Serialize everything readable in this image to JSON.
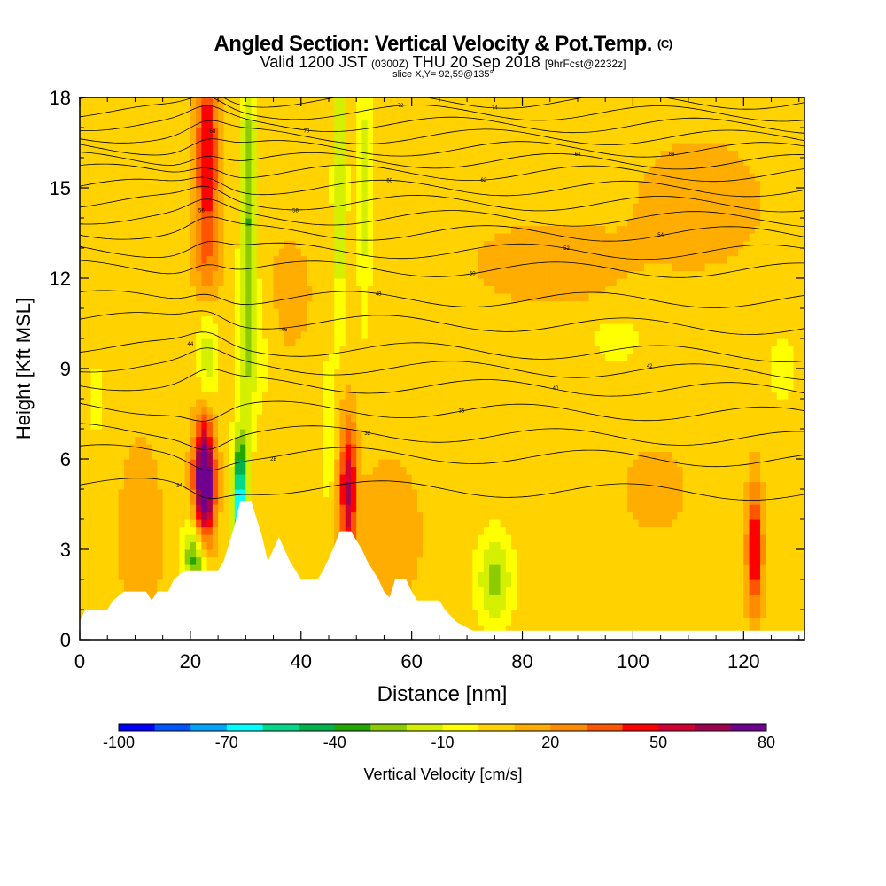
{
  "title": {
    "main": "Angled Section: Vertical Velocity & Pot.Temp.",
    "main_suffix": "(C)",
    "valid_prefix": "Valid 1200 JST",
    "valid_zulu": "(0300Z)",
    "valid_date": "THU 20 Sep 2018",
    "forecast": "[9hrFcst@2232z]",
    "slice": "slice X,Y= 92,59@135°"
  },
  "chart_data": {
    "type": "heatmap",
    "xlabel": "Distance [nm]",
    "ylabel": "Height [Kft MSL]",
    "xlim": [
      0,
      131
    ],
    "ylim": [
      0,
      18
    ],
    "x_ticks": [
      0,
      20,
      40,
      60,
      80,
      100,
      120
    ],
    "y_ticks": [
      0,
      3,
      6,
      9,
      12,
      15,
      18
    ],
    "colorbar": {
      "label": "Vertical Velocity [cm/s]",
      "tick_labels": [
        "-100",
        "-70",
        "-40",
        "-10",
        "20",
        "50",
        "80"
      ],
      "range": [
        -100,
        80
      ],
      "step": 10,
      "colors": [
        "#0000ff",
        "#0055ff",
        "#00a4ff",
        "#00ffff",
        "#00d98c",
        "#00b24c",
        "#23a600",
        "#8ccc00",
        "#d4f000",
        "#ffff00",
        "#ffd200",
        "#ffad00",
        "#ff8c00",
        "#ff5500",
        "#ff0000",
        "#d40032",
        "#a0004e",
        "#700090"
      ]
    },
    "background_velocity": 5,
    "velocity_features": [
      {
        "x": 23,
        "y": 16,
        "sx": 1.6,
        "sy": 4.5,
        "v": 40
      },
      {
        "x": 22.5,
        "y": 5.2,
        "sx": 1.3,
        "sy": 1.5,
        "v": 90
      },
      {
        "x": 21,
        "y": 2.8,
        "sx": 1.5,
        "sy": 0.9,
        "v": -45
      },
      {
        "x": 23,
        "y": 9.5,
        "sx": 1.4,
        "sy": 1.5,
        "v": -35
      },
      {
        "x": 29,
        "y": 4.5,
        "sx": 0.9,
        "sy": 1.5,
        "v": -80
      },
      {
        "x": 30.5,
        "y": 14,
        "sx": 1.0,
        "sy": 4,
        "v": -35
      },
      {
        "x": 31,
        "y": 9.5,
        "sx": 2.5,
        "sy": 1.5,
        "v": -12
      },
      {
        "x": 48.5,
        "y": 5,
        "sx": 1.1,
        "sy": 1.6,
        "v": 55
      },
      {
        "x": 47,
        "y": 15,
        "sx": 0.8,
        "sy": 3,
        "v": -30
      },
      {
        "x": 51.5,
        "y": 15,
        "sx": 0.8,
        "sy": 3,
        "v": -20
      },
      {
        "x": 45,
        "y": 7,
        "sx": 1.0,
        "sy": 1.8,
        "v": -12
      },
      {
        "x": 75,
        "y": 2,
        "sx": 2.2,
        "sy": 1.0,
        "v": -30
      },
      {
        "x": 122,
        "y": 3,
        "sx": 1.0,
        "sy": 1.5,
        "v": 50
      },
      {
        "x": 97,
        "y": 10,
        "sx": 3.5,
        "sy": 0.6,
        "v": -10
      },
      {
        "x": 127,
        "y": 9,
        "sx": 2,
        "sy": 1.2,
        "v": -8
      },
      {
        "x": 11,
        "y": 3.5,
        "sx": 3,
        "sy": 2.5,
        "v": 12
      },
      {
        "x": 56,
        "y": 3.5,
        "sx": 4,
        "sy": 1.8,
        "v": 14
      },
      {
        "x": 85,
        "y": 12.5,
        "sx": 10,
        "sy": 1.0,
        "v": 12
      },
      {
        "x": 112,
        "y": 14.5,
        "sx": 8,
        "sy": 1.5,
        "v": 13
      },
      {
        "x": 38,
        "y": 11.5,
        "sx": 3,
        "sy": 1.5,
        "v": 10
      },
      {
        "x": 3,
        "y": 8,
        "sx": 2,
        "sy": 2,
        "v": -6
      },
      {
        "x": 104,
        "y": 5,
        "sx": 4,
        "sy": 1,
        "v": 12
      }
    ],
    "terrain": [
      [
        0,
        0.6
      ],
      [
        1,
        1.0
      ],
      [
        5,
        1.0
      ],
      [
        6,
        1.3
      ],
      [
        8,
        1.6
      ],
      [
        12,
        1.6
      ],
      [
        13,
        1.3
      ],
      [
        14,
        1.6
      ],
      [
        16,
        1.6
      ],
      [
        17,
        2.0
      ],
      [
        19,
        2.3
      ],
      [
        21,
        2.3
      ],
      [
        22,
        2.3
      ],
      [
        25,
        2.3
      ],
      [
        26,
        2.6
      ],
      [
        27,
        3.2
      ],
      [
        28,
        3.8
      ],
      [
        29,
        4.6
      ],
      [
        31,
        4.6
      ],
      [
        32,
        4.0
      ],
      [
        33,
        3.4
      ],
      [
        34,
        2.6
      ],
      [
        35,
        3.0
      ],
      [
        36,
        3.4
      ],
      [
        37,
        3.0
      ],
      [
        38,
        2.6
      ],
      [
        39,
        2.3
      ],
      [
        40,
        2.0
      ],
      [
        43,
        2.0
      ],
      [
        44,
        2.3
      ],
      [
        45,
        2.7
      ],
      [
        46,
        3.1
      ],
      [
        47,
        3.6
      ],
      [
        49,
        3.6
      ],
      [
        50,
        3.3
      ],
      [
        51,
        3.0
      ],
      [
        52,
        2.6
      ],
      [
        53,
        2.3
      ],
      [
        54,
        2.0
      ],
      [
        55,
        1.6
      ],
      [
        56,
        1.4
      ],
      [
        57,
        2.0
      ],
      [
        59,
        2.0
      ],
      [
        60,
        1.6
      ],
      [
        61,
        1.3
      ],
      [
        65,
        1.3
      ],
      [
        66,
        1.0
      ],
      [
        67,
        0.8
      ],
      [
        68,
        0.6
      ],
      [
        70,
        0.4
      ],
      [
        71,
        0.3
      ],
      [
        131,
        0.3
      ]
    ],
    "isentropes": {
      "heights_kft": [
        5.0,
        6.1,
        6.8,
        7.6,
        8.4,
        9.0,
        9.6,
        10.5,
        11.3,
        12.3,
        12.9,
        13.5,
        14.0,
        14.5,
        15.0,
        15.5,
        15.9,
        16.3,
        16.7,
        17.1,
        17.5,
        17.9
      ],
      "labels": [
        "24",
        "28",
        "32",
        "36",
        "40",
        "42",
        "44",
        "46",
        "48",
        "50",
        "52",
        "54",
        "56",
        "58",
        "60",
        "62",
        "64",
        "66",
        "68",
        "70",
        "72",
        "74"
      ]
    }
  }
}
